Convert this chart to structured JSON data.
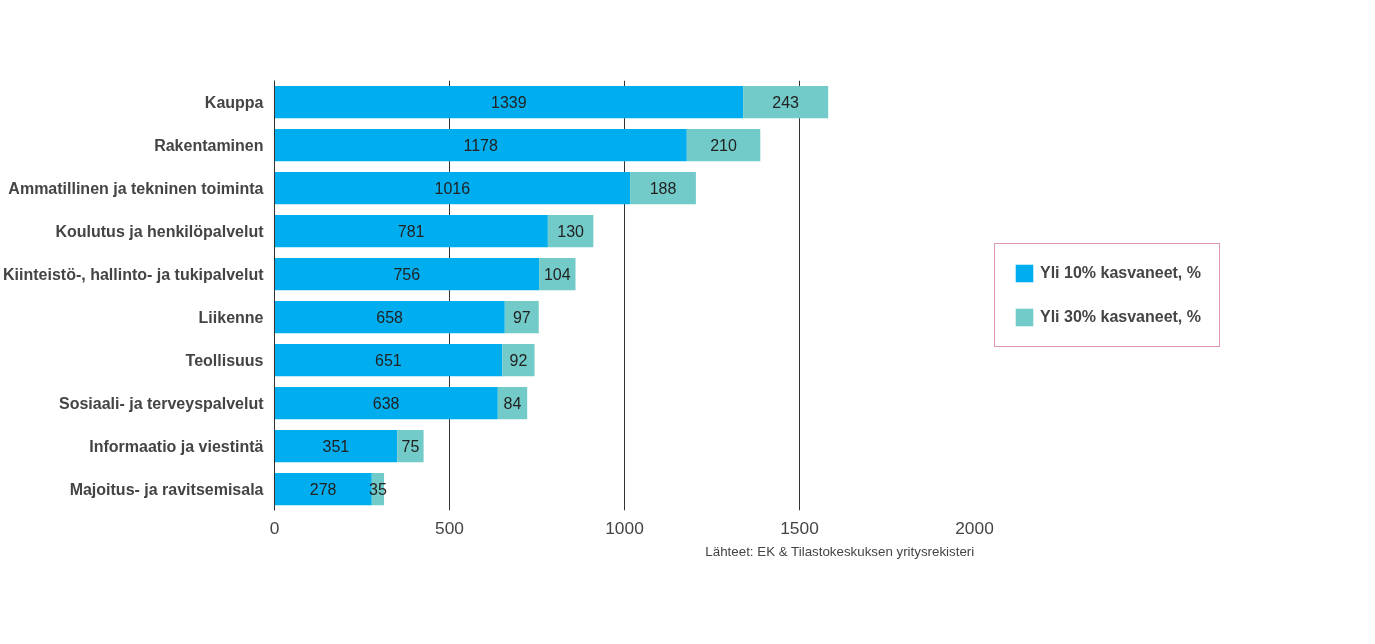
{
  "chart_data": {
    "type": "bar",
    "orientation": "horizontal",
    "stacked": true,
    "categories": [
      "Kauppa",
      "Rakentaminen",
      "Ammatillinen ja tekninen toiminta",
      "Koulutus ja henkilöpalvelut",
      "Kiinteistö-, hallinto- ja tukipalvelut",
      "Liikenne",
      "Teollisuus",
      "Sosiaali- ja terveyspalvelut",
      "Informaatio ja viestintä",
      "Majoitus- ja ravitsemisala"
    ],
    "series": [
      {
        "name": "Yli 10% kasvaneet, %",
        "color": "#00aeef",
        "values": [
          1339,
          1178,
          1016,
          781,
          756,
          658,
          651,
          638,
          351,
          278
        ]
      },
      {
        "name": "Yli 30% kasvaneet, %",
        "color": "#72cbc8",
        "values": [
          243,
          210,
          188,
          130,
          104,
          97,
          92,
          84,
          75,
          35
        ]
      }
    ],
    "xlim": [
      0,
      2000
    ],
    "xticks": [
      0,
      500,
      1000,
      1500,
      2000
    ],
    "grid": "x",
    "legend": "right",
    "data_labels": true,
    "annotations": [
      "Lähteet: EK & Tilastokeskuksen yritysrekisteri"
    ]
  }
}
